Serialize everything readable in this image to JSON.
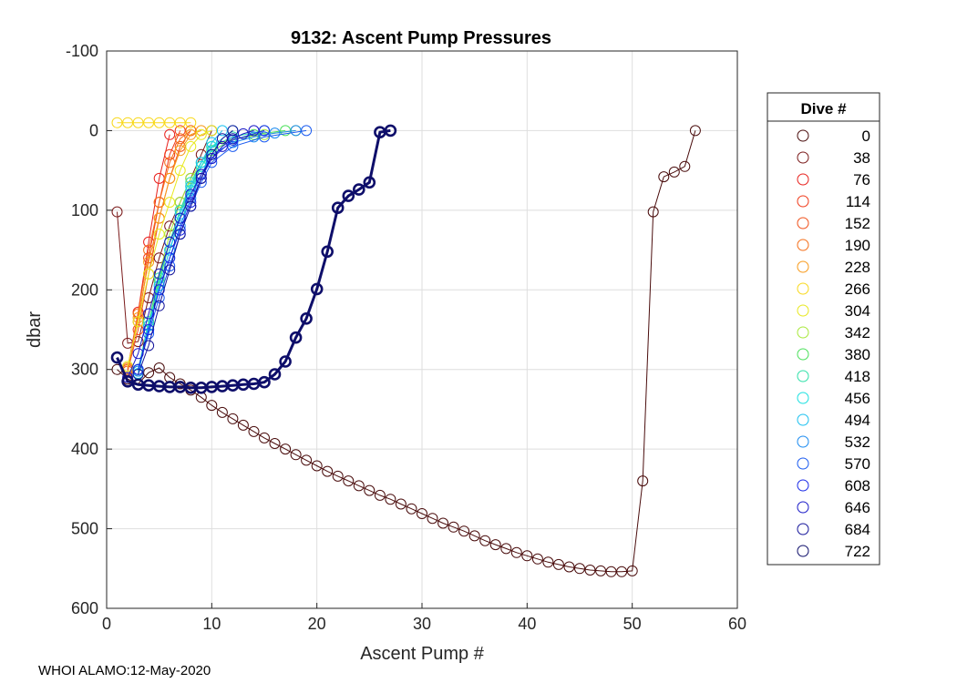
{
  "chart_data": {
    "type": "line",
    "title": "9132: Ascent Pump Pressures",
    "xlabel": "Ascent Pump #",
    "ylabel": "dbar",
    "xlim": [
      0,
      60
    ],
    "ylim": [
      -100,
      600
    ],
    "y_reversed": true,
    "grid": true,
    "xticks": [
      0,
      10,
      20,
      30,
      40,
      50,
      60
    ],
    "yticks": [
      -100,
      0,
      100,
      200,
      300,
      400,
      500,
      600
    ],
    "legend": {
      "title": "Dive #",
      "placement": "outside-right",
      "entries": [
        {
          "label": "0",
          "color": "#4a0d0d"
        },
        {
          "label": "38",
          "color": "#7a1a1a"
        },
        {
          "label": "76",
          "color": "#e8201c"
        },
        {
          "label": "114",
          "color": "#f03a1a"
        },
        {
          "label": "152",
          "color": "#f0501a"
        },
        {
          "label": "190",
          "color": "#f56e18"
        },
        {
          "label": "228",
          "color": "#f89a1a"
        },
        {
          "label": "266",
          "color": "#f8d81a"
        },
        {
          "label": "304",
          "color": "#e8e81e"
        },
        {
          "label": "342",
          "color": "#a8e83a"
        },
        {
          "label": "380",
          "color": "#4ae05a"
        },
        {
          "label": "418",
          "color": "#2ee0a8"
        },
        {
          "label": "456",
          "color": "#1ae0e0"
        },
        {
          "label": "494",
          "color": "#1ac0f0"
        },
        {
          "label": "532",
          "color": "#1a8af0"
        },
        {
          "label": "570",
          "color": "#1a5af0"
        },
        {
          "label": "608",
          "color": "#1a2ae8"
        },
        {
          "label": "646",
          "color": "#1a1ac8"
        },
        {
          "label": "684",
          "color": "#14149a"
        },
        {
          "label": "722",
          "color": "#0e0e6a"
        }
      ]
    },
    "series": [
      {
        "name": "0",
        "color": "#4a0d0d",
        "width": 1,
        "x": [
          1,
          2,
          3,
          4,
          5,
          6,
          7,
          8,
          9,
          10,
          11,
          12,
          13,
          14,
          15,
          16,
          17,
          18,
          19,
          20,
          21,
          22,
          23,
          24,
          25,
          26,
          27,
          28,
          29,
          30,
          31,
          32,
          33,
          34,
          35,
          36,
          37,
          38,
          39,
          40,
          41,
          42,
          43,
          44,
          45,
          46,
          47,
          48,
          49,
          50,
          51,
          52,
          53,
          54,
          55,
          56
        ],
        "y": [
          300,
          312,
          318,
          304,
          298,
          310,
          318,
          326,
          335,
          345,
          354,
          362,
          370,
          378,
          386,
          393,
          400,
          407,
          414,
          421,
          428,
          434,
          440,
          446,
          452,
          458,
          463,
          469,
          475,
          481,
          487,
          493,
          498,
          503,
          509,
          515,
          520,
          525,
          530,
          534,
          538,
          542,
          545,
          548,
          550,
          552,
          553,
          554,
          554,
          553,
          440,
          102,
          58,
          52,
          45,
          0
        ]
      },
      {
        "name": "38",
        "color": "#7a1a1a",
        "width": 1,
        "x": [
          1,
          2,
          3,
          4,
          5,
          6,
          7,
          8,
          9,
          10
        ],
        "y": [
          102,
          267,
          265,
          210,
          160,
          120,
          90,
          60,
          30,
          0
        ]
      },
      {
        "name": "76",
        "color": "#e8201c",
        "width": 1,
        "x": [
          2,
          3,
          4,
          5,
          6
        ],
        "y": [
          298,
          228,
          140,
          60,
          5
        ]
      },
      {
        "name": "114",
        "color": "#f03a1a",
        "width": 1,
        "x": [
          2,
          3,
          4,
          5,
          6,
          7
        ],
        "y": [
          300,
          240,
          160,
          90,
          30,
          0
        ]
      },
      {
        "name": "152",
        "color": "#f0501a",
        "width": 1,
        "x": [
          2,
          3,
          4,
          5,
          6,
          7,
          8
        ],
        "y": [
          302,
          250,
          180,
          110,
          60,
          20,
          0
        ]
      },
      {
        "name": "190",
        "color": "#f56e18",
        "width": 1,
        "x": [
          2,
          3,
          4,
          5,
          6,
          7,
          8
        ],
        "y": [
          300,
          230,
          150,
          90,
          40,
          10,
          0
        ]
      },
      {
        "name": "228",
        "color": "#f89a1a",
        "width": 1,
        "x": [
          2,
          3,
          4,
          5,
          6,
          7,
          8,
          9
        ],
        "y": [
          298,
          235,
          165,
          110,
          60,
          25,
          5,
          0
        ]
      },
      {
        "name": "266",
        "color": "#f8d81a",
        "width": 1,
        "x": [
          1,
          2,
          3,
          4,
          5,
          6,
          7,
          8
        ],
        "y": [
          -10,
          -10,
          -10,
          -10,
          -10,
          -10,
          -10,
          -10
        ]
      },
      {
        "name": "304",
        "color": "#e8e81e",
        "width": 1,
        "x": [
          2,
          3,
          4,
          5,
          6,
          7,
          8,
          9,
          10
        ],
        "y": [
          296,
          240,
          180,
          130,
          90,
          50,
          20,
          5,
          0
        ]
      },
      {
        "name": "342",
        "color": "#a8e83a",
        "width": 1,
        "x": [
          3,
          4,
          5,
          6,
          7,
          8,
          9,
          10,
          12,
          15,
          18
        ],
        "y": [
          300,
          240,
          180,
          130,
          90,
          60,
          40,
          20,
          10,
          5,
          0
        ]
      },
      {
        "name": "380",
        "color": "#4ae05a",
        "width": 1,
        "x": [
          3,
          4,
          5,
          6,
          7,
          8,
          9,
          10,
          12,
          14,
          17
        ],
        "y": [
          302,
          245,
          190,
          140,
          100,
          70,
          45,
          25,
          12,
          5,
          0
        ]
      },
      {
        "name": "418",
        "color": "#2ee0a8",
        "width": 1,
        "x": [
          3,
          4,
          5,
          6,
          7,
          8,
          9,
          10,
          12,
          15
        ],
        "y": [
          300,
          240,
          185,
          140,
          100,
          65,
          40,
          20,
          8,
          0
        ]
      },
      {
        "name": "456",
        "color": "#1ae0e0",
        "width": 1,
        "x": [
          3,
          4,
          5,
          6,
          7,
          8,
          9,
          10,
          12
        ],
        "y": [
          305,
          250,
          195,
          150,
          110,
          75,
          45,
          20,
          0
        ]
      },
      {
        "name": "494",
        "color": "#1ac0f0",
        "width": 1,
        "x": [
          3,
          4,
          5,
          6,
          7,
          8,
          9,
          10,
          11
        ],
        "y": [
          300,
          245,
          195,
          150,
          105,
          70,
          40,
          15,
          0
        ]
      },
      {
        "name": "532",
        "color": "#1a8af0",
        "width": 1,
        "x": [
          3,
          4,
          5,
          6,
          7,
          8,
          9,
          10,
          12,
          14,
          16,
          18
        ],
        "y": [
          302,
          250,
          200,
          160,
          120,
          85,
          55,
          30,
          15,
          8,
          3,
          0
        ]
      },
      {
        "name": "570",
        "color": "#1a5af0",
        "width": 1,
        "x": [
          3,
          4,
          5,
          6,
          7,
          8,
          9,
          10,
          12,
          15,
          19
        ],
        "y": [
          300,
          255,
          210,
          170,
          130,
          95,
          65,
          40,
          20,
          8,
          0
        ]
      },
      {
        "name": "608",
        "color": "#1a2ae8",
        "width": 1,
        "x": [
          3,
          4,
          5,
          6,
          7,
          8,
          9,
          10,
          12,
          15
        ],
        "y": [
          300,
          250,
          200,
          160,
          125,
          90,
          60,
          35,
          12,
          0
        ]
      },
      {
        "name": "646",
        "color": "#1a1ac8",
        "width": 1,
        "x": [
          2,
          3,
          4,
          5,
          6,
          7,
          8,
          9,
          10,
          11,
          12,
          13,
          14
        ],
        "y": [
          310,
          280,
          230,
          180,
          140,
          110,
          80,
          55,
          35,
          20,
          10,
          4,
          0
        ]
      },
      {
        "name": "684",
        "color": "#14149a",
        "width": 1,
        "x": [
          3,
          4,
          5,
          6,
          7,
          8,
          9,
          10,
          11,
          12
        ],
        "y": [
          306,
          270,
          220,
          175,
          130,
          95,
          60,
          30,
          10,
          0
        ]
      },
      {
        "name": "722",
        "color": "#0e0e6a",
        "width": 3,
        "x": [
          1,
          2,
          3,
          4,
          5,
          6,
          7,
          8,
          9,
          10,
          11,
          12,
          13,
          14,
          15,
          16,
          17,
          18,
          19,
          20,
          21,
          22,
          23,
          24,
          25,
          26,
          27
        ],
        "y": [
          285,
          315,
          319,
          320,
          321,
          322,
          322,
          323,
          323,
          322,
          321,
          320,
          319,
          318,
          316,
          306,
          290,
          260,
          236,
          199,
          152,
          97,
          82,
          74,
          65,
          2,
          0
        ]
      }
    ]
  },
  "footer": "WHOI ALAMO:12-May-2020"
}
